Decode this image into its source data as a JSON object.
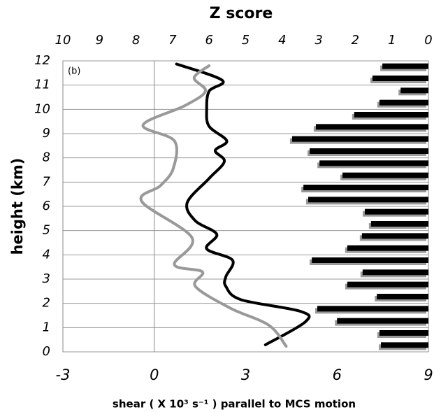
{
  "chart_data": [
    {
      "type": "barh",
      "title": "Z score",
      "color": "#000000",
      "shadow_color": "#999999",
      "xlim": [
        10,
        0
      ],
      "xticks": [
        10,
        9,
        8,
        7,
        6,
        5,
        4,
        3,
        2,
        1,
        0
      ],
      "ylim": [
        0,
        12
      ],
      "y": [
        11.75,
        11.25,
        10.75,
        10.25,
        9.75,
        9.25,
        8.75,
        8.25,
        7.75,
        7.25,
        6.75,
        6.25,
        5.75,
        5.25,
        4.75,
        4.25,
        3.75,
        3.25,
        2.75,
        2.25,
        1.75,
        1.25,
        0.75,
        0.25
      ],
      "values": [
        1.26,
        1.53,
        0.76,
        1.34,
        2.03,
        3.08,
        3.73,
        3.25,
        2.98,
        2.35,
        3.42,
        3.29,
        1.74,
        1.57,
        1.82,
        2.22,
        3.19,
        1.8,
        2.22,
        1.41,
        3.04,
        2.5,
        1.34,
        1.3
      ]
    },
    {
      "type": "line",
      "annotation": "(b)",
      "ylabel": "height (km)",
      "xlabel": "shear ( X 10³ s⁻¹ ) parallel to MCS motion",
      "xlim": [
        -3,
        9
      ],
      "xticks": [
        -3,
        0,
        3,
        6,
        9
      ],
      "ylim": [
        0,
        12
      ],
      "yticks": [
        0,
        1,
        2,
        3,
        4,
        5,
        6,
        7,
        8,
        9,
        10,
        11,
        12
      ],
      "grid": true,
      "series": [
        {
          "color": "#000000",
          "x": [
            0.73,
            2.23,
            1.8,
            1.72,
            1.8,
            2.38,
            2.0,
            2.3,
            1.8,
            1.08,
            1.35,
            2.05,
            1.72,
            2.57,
            2.35,
            2.35,
            2.85,
            4.8,
            4.96,
            3.65
          ],
          "y": [
            11.87,
            11.2,
            10.75,
            10.0,
            9.3,
            8.7,
            8.3,
            7.85,
            7.15,
            6.15,
            5.4,
            4.85,
            4.25,
            3.78,
            3.1,
            2.7,
            2.15,
            1.67,
            1.24,
            0.29
          ]
        },
        {
          "color": "#999999",
          "x": [
            1.8,
            1.31,
            1.68,
            1.0,
            -0.37,
            0.66,
            0.62,
            0.2,
            -0.41,
            1.24,
            0.66,
            1.58,
            1.35,
            2.5,
            3.76,
            4.33
          ],
          "y": [
            11.8,
            11.3,
            10.75,
            10.15,
            9.35,
            8.7,
            7.55,
            6.85,
            6.2,
            4.7,
            3.6,
            3.3,
            2.7,
            1.8,
            1.1,
            0.23
          ]
        }
      ]
    }
  ]
}
